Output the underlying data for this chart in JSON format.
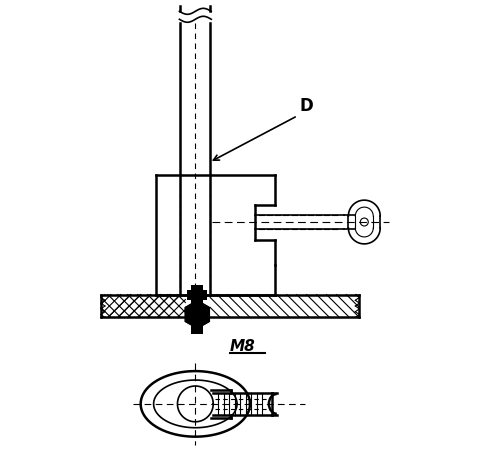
{
  "bg_color": "#ffffff",
  "line_color": "#000000",
  "label_D": "D",
  "label_M8": "M8",
  "fig_width": 5.0,
  "fig_height": 4.5,
  "dpi": 100
}
